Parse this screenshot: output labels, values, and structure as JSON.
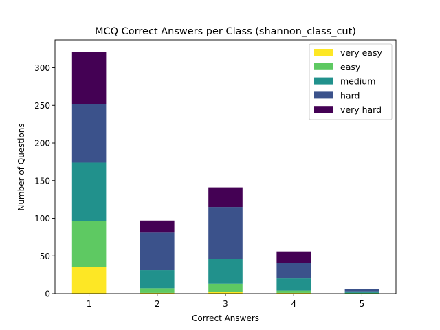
{
  "chart_data": {
    "type": "bar",
    "stacked": true,
    "title": "MCQ Correct Answers per Class (shannon_class_cut)",
    "xlabel": "Correct Answers",
    "ylabel": "Number of Questions",
    "categories": [
      "1",
      "2",
      "3",
      "4",
      "5"
    ],
    "ylim": [
      0,
      337
    ],
    "yticks": [
      0,
      50,
      100,
      150,
      200,
      250,
      300
    ],
    "grid": false,
    "legend_position": "top-right",
    "series": [
      {
        "name": "very easy",
        "color": "#fde725",
        "values": [
          35,
          1,
          2,
          1,
          0
        ]
      },
      {
        "name": "easy",
        "color": "#5ec962",
        "values": [
          61,
          6,
          11,
          3,
          1
        ]
      },
      {
        "name": "medium",
        "color": "#21918c",
        "values": [
          78,
          24,
          33,
          16,
          2
        ]
      },
      {
        "name": "hard",
        "color": "#3b528b",
        "values": [
          78,
          50,
          69,
          21,
          3
        ]
      },
      {
        "name": "very hard",
        "color": "#440154",
        "values": [
          69,
          16,
          26,
          15,
          0
        ]
      }
    ]
  }
}
